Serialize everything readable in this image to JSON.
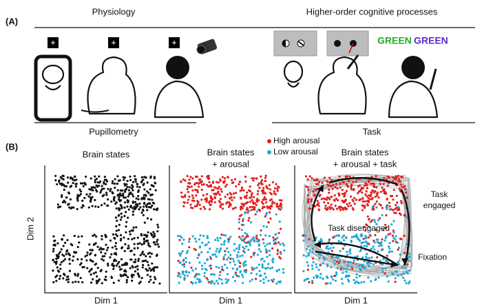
{
  "panel_a": {
    "label": "(A)",
    "left_heading": "Physiology",
    "right_heading": "Higher-order cognitive processes",
    "stroop_words": [
      "GREEN",
      "GREEN"
    ],
    "left_caption": "Pupillometry",
    "right_caption": "Task"
  },
  "panel_b": {
    "label": "(B)",
    "y_axis_label": "Dim 2",
    "plots": [
      {
        "title": [
          "Brain states"
        ],
        "x_axis_label": "Dim 1"
      },
      {
        "title": [
          "Brain states",
          "+ arousal"
        ],
        "x_axis_label": "Dim 1",
        "legend": [
          "High arousal",
          "Low arousal"
        ]
      },
      {
        "title": [
          "Brain states",
          "+ arousal + task"
        ],
        "x_axis_label": "Dim 1",
        "annotations": {
          "engaged": [
            "Task",
            "engaged"
          ],
          "disengaged": "Task disengaged",
          "fixation": "Fixation"
        }
      }
    ]
  }
}
